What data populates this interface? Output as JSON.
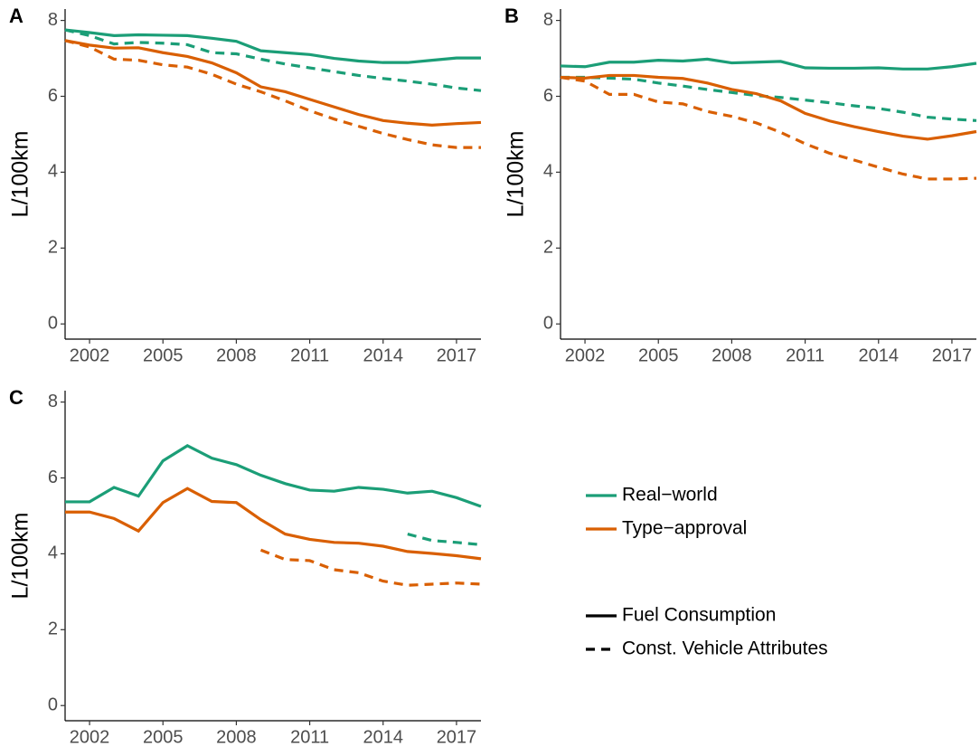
{
  "chart_data": [
    {
      "type": "line",
      "panel": "A",
      "y_label": "L/100km",
      "x": [
        2001,
        2002,
        2003,
        2004,
        2005,
        2006,
        2007,
        2008,
        2009,
        2010,
        2011,
        2012,
        2013,
        2014,
        2015,
        2016,
        2017,
        2018
      ],
      "xlim": [
        2001,
        2018
      ],
      "xticks": [
        2002,
        2005,
        2008,
        2011,
        2014,
        2017
      ],
      "ylim": [
        -0.4,
        8.3
      ],
      "yticks": [
        0,
        2,
        4,
        6,
        8
      ],
      "series": [
        {
          "color": "#1b9e77",
          "dash": "solid",
          "values": [
            7.75,
            7.68,
            7.6,
            7.62,
            7.61,
            7.6,
            7.53,
            7.45,
            7.2,
            7.15,
            7.1,
            7.0,
            6.93,
            6.89,
            6.89,
            6.95,
            7.01,
            7.01
          ]
        },
        {
          "color": "#1b9e77",
          "dash": "dashed",
          "values": [
            7.75,
            7.6,
            7.38,
            7.42,
            7.4,
            7.36,
            7.15,
            7.12,
            6.98,
            6.85,
            6.75,
            6.65,
            6.55,
            6.47,
            6.4,
            6.32,
            6.22,
            6.15
          ]
        },
        {
          "color": "#d95f02",
          "dash": "solid",
          "values": [
            7.47,
            7.35,
            7.27,
            7.28,
            7.15,
            7.05,
            6.88,
            6.62,
            6.25,
            6.12,
            5.92,
            5.72,
            5.52,
            5.36,
            5.29,
            5.24,
            5.28,
            5.31
          ]
        },
        {
          "color": "#d95f02",
          "dash": "dashed",
          "values": [
            7.47,
            7.3,
            6.98,
            6.95,
            6.83,
            6.77,
            6.58,
            6.32,
            6.12,
            5.88,
            5.62,
            5.4,
            5.21,
            5.02,
            4.86,
            4.72,
            4.65,
            4.65
          ]
        }
      ]
    },
    {
      "type": "line",
      "panel": "B",
      "y_label": "L/100km",
      "x": [
        2001,
        2002,
        2003,
        2004,
        2005,
        2006,
        2007,
        2008,
        2009,
        2010,
        2011,
        2012,
        2013,
        2014,
        2015,
        2016,
        2017,
        2018
      ],
      "xlim": [
        2001,
        2018
      ],
      "xticks": [
        2002,
        2005,
        2008,
        2011,
        2014,
        2017
      ],
      "ylim": [
        -0.4,
        8.3
      ],
      "yticks": [
        0,
        2,
        4,
        6,
        8
      ],
      "series": [
        {
          "color": "#1b9e77",
          "dash": "solid",
          "values": [
            6.8,
            6.78,
            6.9,
            6.9,
            6.95,
            6.93,
            6.98,
            6.88,
            6.9,
            6.92,
            6.75,
            6.74,
            6.74,
            6.75,
            6.72,
            6.72,
            6.78,
            6.87
          ]
        },
        {
          "color": "#1b9e77",
          "dash": "dashed",
          "values": [
            6.5,
            6.5,
            6.48,
            6.45,
            6.35,
            6.27,
            6.18,
            6.1,
            6.02,
            5.97,
            5.9,
            5.83,
            5.75,
            5.68,
            5.58,
            5.45,
            5.4,
            5.36
          ]
        },
        {
          "color": "#d95f02",
          "dash": "solid",
          "values": [
            6.5,
            6.48,
            6.55,
            6.55,
            6.5,
            6.47,
            6.35,
            6.18,
            6.07,
            5.88,
            5.55,
            5.35,
            5.2,
            5.07,
            4.95,
            4.87,
            4.96,
            5.07
          ]
        },
        {
          "color": "#d95f02",
          "dash": "dashed",
          "values": [
            6.5,
            6.4,
            6.05,
            6.05,
            5.85,
            5.8,
            5.6,
            5.47,
            5.3,
            5.05,
            4.75,
            4.5,
            4.32,
            4.13,
            3.95,
            3.82,
            3.82,
            3.84
          ]
        }
      ]
    },
    {
      "type": "line",
      "panel": "C",
      "y_label": "L/100km",
      "x": [
        2001,
        2002,
        2003,
        2004,
        2005,
        2006,
        2007,
        2008,
        2009,
        2010,
        2011,
        2012,
        2013,
        2014,
        2015,
        2016,
        2017,
        2018
      ],
      "xlim": [
        2001,
        2018
      ],
      "xticks": [
        2002,
        2005,
        2008,
        2011,
        2014,
        2017
      ],
      "ylim": [
        -0.4,
        8.3
      ],
      "yticks": [
        0,
        2,
        4,
        6,
        8
      ],
      "series": [
        {
          "color": "#1b9e77",
          "dash": "solid",
          "values": [
            5.37,
            5.37,
            5.75,
            5.52,
            6.45,
            6.85,
            6.52,
            6.35,
            6.07,
            5.85,
            5.68,
            5.65,
            5.75,
            5.7,
            5.6,
            5.65,
            5.48,
            5.25
          ]
        },
        {
          "color": "#1b9e77",
          "dash": "dashed",
          "values": [
            null,
            null,
            null,
            null,
            null,
            null,
            null,
            null,
            null,
            null,
            null,
            null,
            null,
            null,
            4.52,
            4.35,
            4.3,
            4.24
          ]
        },
        {
          "color": "#d95f02",
          "dash": "solid",
          "values": [
            5.1,
            5.1,
            4.93,
            4.6,
            5.35,
            5.72,
            5.38,
            5.35,
            4.9,
            4.52,
            4.38,
            4.3,
            4.28,
            4.2,
            4.06,
            4.01,
            3.95,
            3.87
          ]
        },
        {
          "color": "#d95f02",
          "dash": "dashed",
          "values": [
            null,
            null,
            null,
            null,
            null,
            null,
            null,
            null,
            4.1,
            3.85,
            3.82,
            3.58,
            3.5,
            3.28,
            3.17,
            3.2,
            3.23,
            3.2
          ]
        }
      ]
    }
  ],
  "legend": {
    "colors": [
      {
        "label": "Real−world",
        "color": "#1b9e77"
      },
      {
        "label": "Type−approval",
        "color": "#d95f02"
      }
    ],
    "linetypes": [
      {
        "label": "Fuel Consumption",
        "dash": "solid"
      },
      {
        "label": "Const. Vehicle Attributes",
        "dash": "dashed"
      }
    ]
  }
}
